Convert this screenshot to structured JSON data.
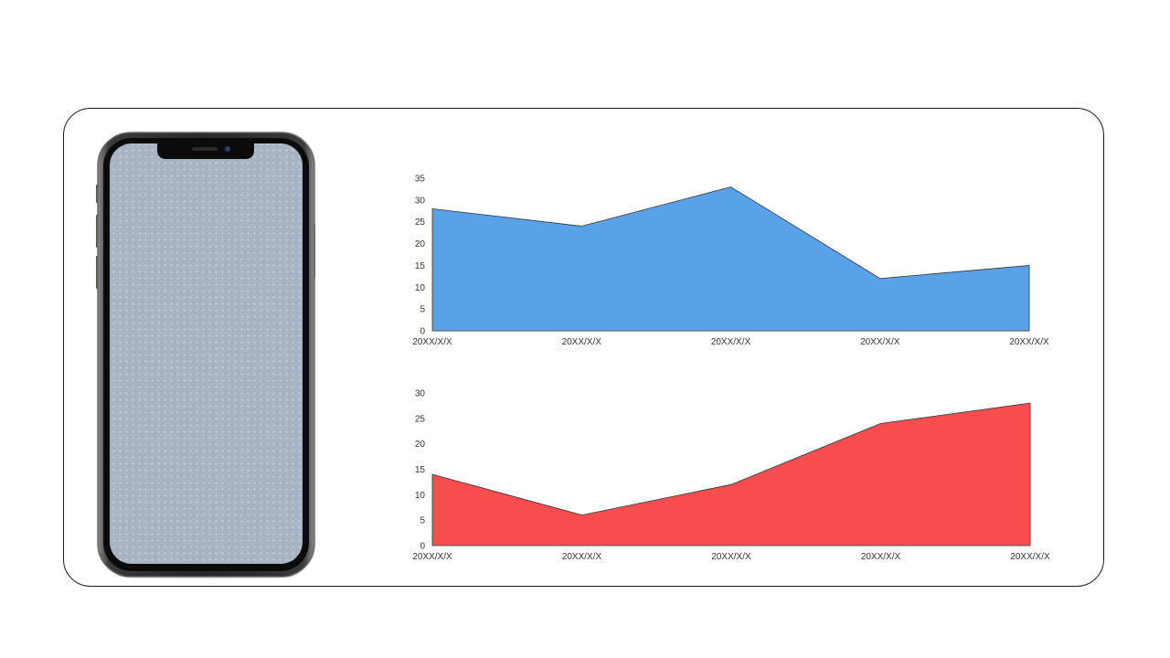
{
  "colors": {
    "series_1": "#5aa2e8",
    "series_2": "#f84d4f",
    "frame": "#1a1a1a",
    "phone_screen": "#a8b4c2"
  },
  "phone": {
    "icon": "smartphone-mockup-icon"
  },
  "chart_data": [
    {
      "type": "area",
      "x": [
        "20XX/X/X",
        "20XX/X/X",
        "20XX/X/X",
        "20XX/X/X",
        "20XX/X/X"
      ],
      "series": [
        {
          "values": [
            28,
            24,
            33,
            12,
            15
          ]
        }
      ],
      "ylim": [
        0,
        35
      ],
      "yticks": [
        0,
        5,
        10,
        15,
        20,
        25,
        30,
        35
      ],
      "grid": false,
      "legend": "none"
    },
    {
      "type": "area",
      "x": [
        "20XX/X/X",
        "20XX/X/X",
        "20XX/X/X",
        "20XX/X/X",
        "20XX/X/X"
      ],
      "series": [
        {
          "values": [
            14,
            6,
            12,
            24,
            28
          ]
        }
      ],
      "ylim": [
        0,
        30
      ],
      "yticks": [
        0,
        5,
        10,
        15,
        20,
        25,
        30
      ],
      "grid": false,
      "legend": "none"
    }
  ]
}
